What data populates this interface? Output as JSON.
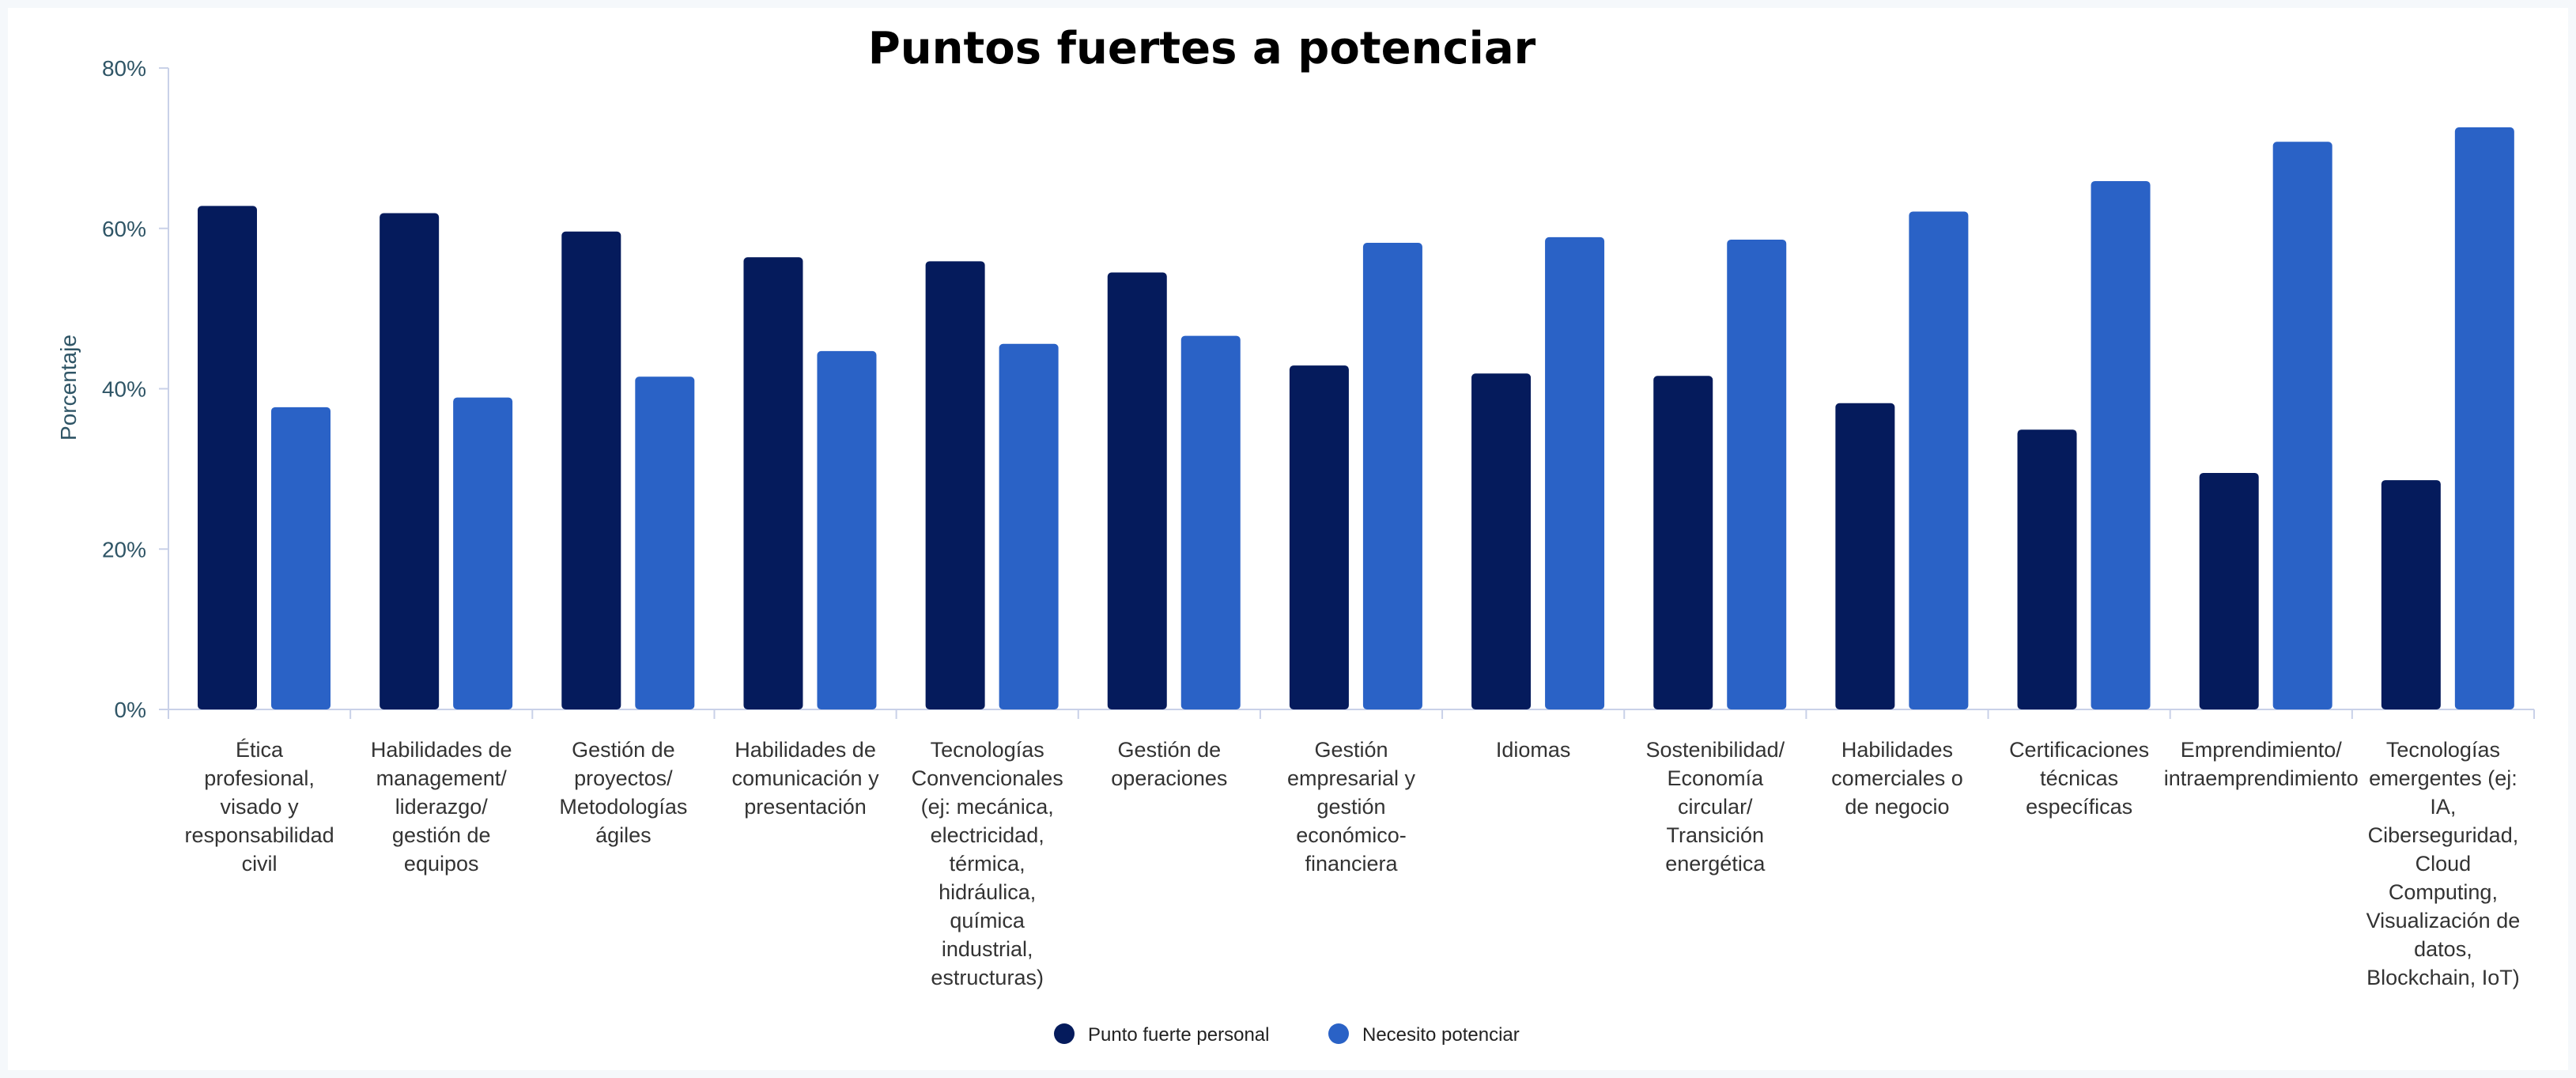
{
  "chart_data": {
    "type": "bar",
    "title": "Puntos fuertes a potenciar",
    "ylabel": "Porcentaje",
    "xlabel": "",
    "ylim": [
      0,
      80
    ],
    "yticks": [
      "0%",
      "20%",
      "40%",
      "60%",
      "80%"
    ],
    "grid": false,
    "legend_position": "bottom",
    "categories": [
      [
        "Ética",
        "profesional,",
        "visado y",
        "responsabilidad",
        "civil"
      ],
      [
        "Habilidades de",
        "management/",
        "liderazgo/",
        "gestión de",
        "equipos"
      ],
      [
        "Gestión de",
        "proyectos/",
        "Metodologías",
        "ágiles"
      ],
      [
        "Habilidades de",
        "comunicación y",
        "presentación"
      ],
      [
        "Tecnologías",
        "Convencionales",
        "(ej: mecánica,",
        "electricidad,",
        "térmica,",
        "hidráulica,",
        "química",
        "industrial,",
        "estructuras)"
      ],
      [
        "Gestión de",
        "operaciones"
      ],
      [
        "Gestión",
        "empresarial y",
        "gestión",
        "económico-",
        "financiera"
      ],
      [
        "Idiomas"
      ],
      [
        "Sostenibilidad/",
        "Economía",
        "circular/",
        "Transición",
        "energética"
      ],
      [
        "Habilidades",
        "comerciales o",
        "de negocio"
      ],
      [
        "Certificaciones",
        "técnicas",
        "específicas"
      ],
      [
        "Emprendimiento/",
        "intraemprendimiento"
      ],
      [
        "Tecnologías",
        "emergentes (ej:",
        "IA,",
        "Ciberseguridad,",
        "Cloud",
        "Computing,",
        "Visualización de",
        "datos,",
        "Blockchain, IoT)"
      ]
    ],
    "series": [
      {
        "name": "Punto fuerte personal",
        "color": "#051b5c",
        "values": [
          62.8,
          61.9,
          59.6,
          56.4,
          55.9,
          54.5,
          42.9,
          41.9,
          41.6,
          38.2,
          34.9,
          29.5,
          28.6
        ]
      },
      {
        "name": "Necesito potenciar",
        "color": "#2a62c6",
        "values": [
          37.7,
          38.9,
          41.5,
          44.7,
          45.6,
          46.6,
          58.2,
          58.9,
          58.6,
          62.1,
          65.9,
          70.8,
          72.6
        ]
      }
    ]
  }
}
